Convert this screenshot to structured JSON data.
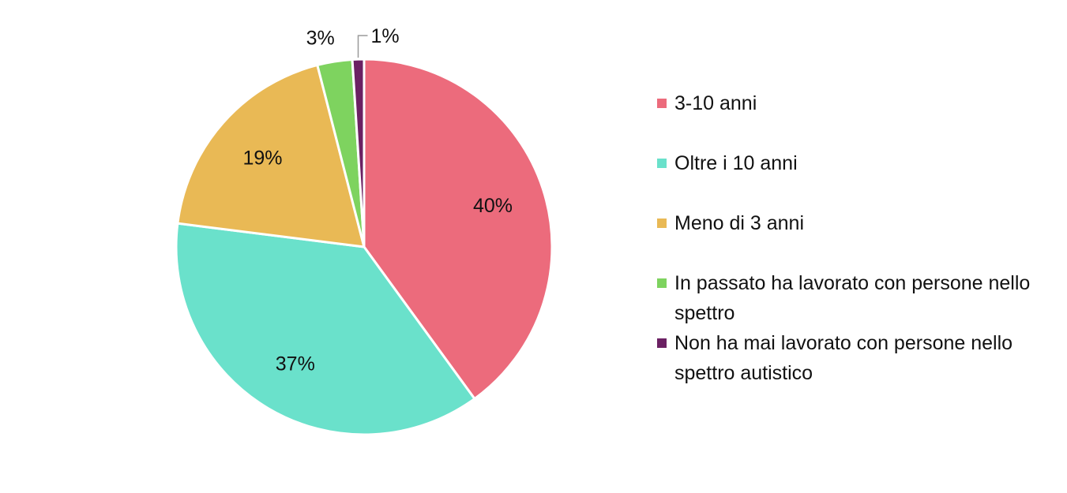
{
  "chart_data": {
    "type": "pie",
    "title": "",
    "categories": [
      "3-10 anni",
      "Oltre i 10 anni",
      "Meno di 3 anni",
      "In passato ha lavorato con persone nello spettro",
      "Non ha mai lavorato con persone nello spettro autistico"
    ],
    "values": [
      40,
      37,
      19,
      3,
      1
    ],
    "data_labels": [
      "40%",
      "37%",
      "19%",
      "3%",
      "1%"
    ],
    "colors": [
      "#EC6B7C",
      "#6AE1CB",
      "#E9B955",
      "#7ED35F",
      "#6B2163"
    ],
    "legend_placement": "right",
    "start_angle": "top (12 o'clock), clockwise"
  }
}
